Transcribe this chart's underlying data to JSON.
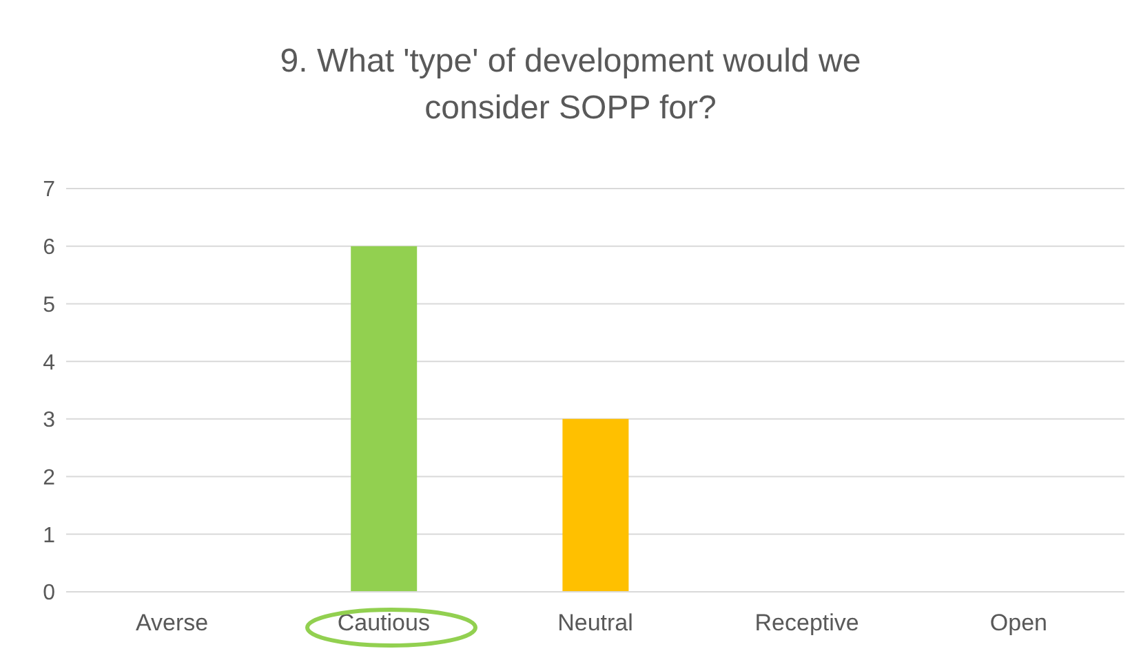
{
  "chart_data": {
    "type": "bar",
    "title": "9. What 'type' of development would we consider SOPP for?",
    "categories": [
      "Averse",
      "Cautious",
      "Neutral",
      "Receptive",
      "Open"
    ],
    "values": [
      0,
      6,
      3,
      0,
      0
    ],
    "colors": [
      "#92d050",
      "#92d050",
      "#ffc000",
      "#ffc000",
      "#ffc000"
    ],
    "ylim": [
      0,
      7
    ],
    "yticks": [
      0,
      1,
      2,
      3,
      4,
      5,
      6,
      7
    ],
    "grid": "y"
  }
}
